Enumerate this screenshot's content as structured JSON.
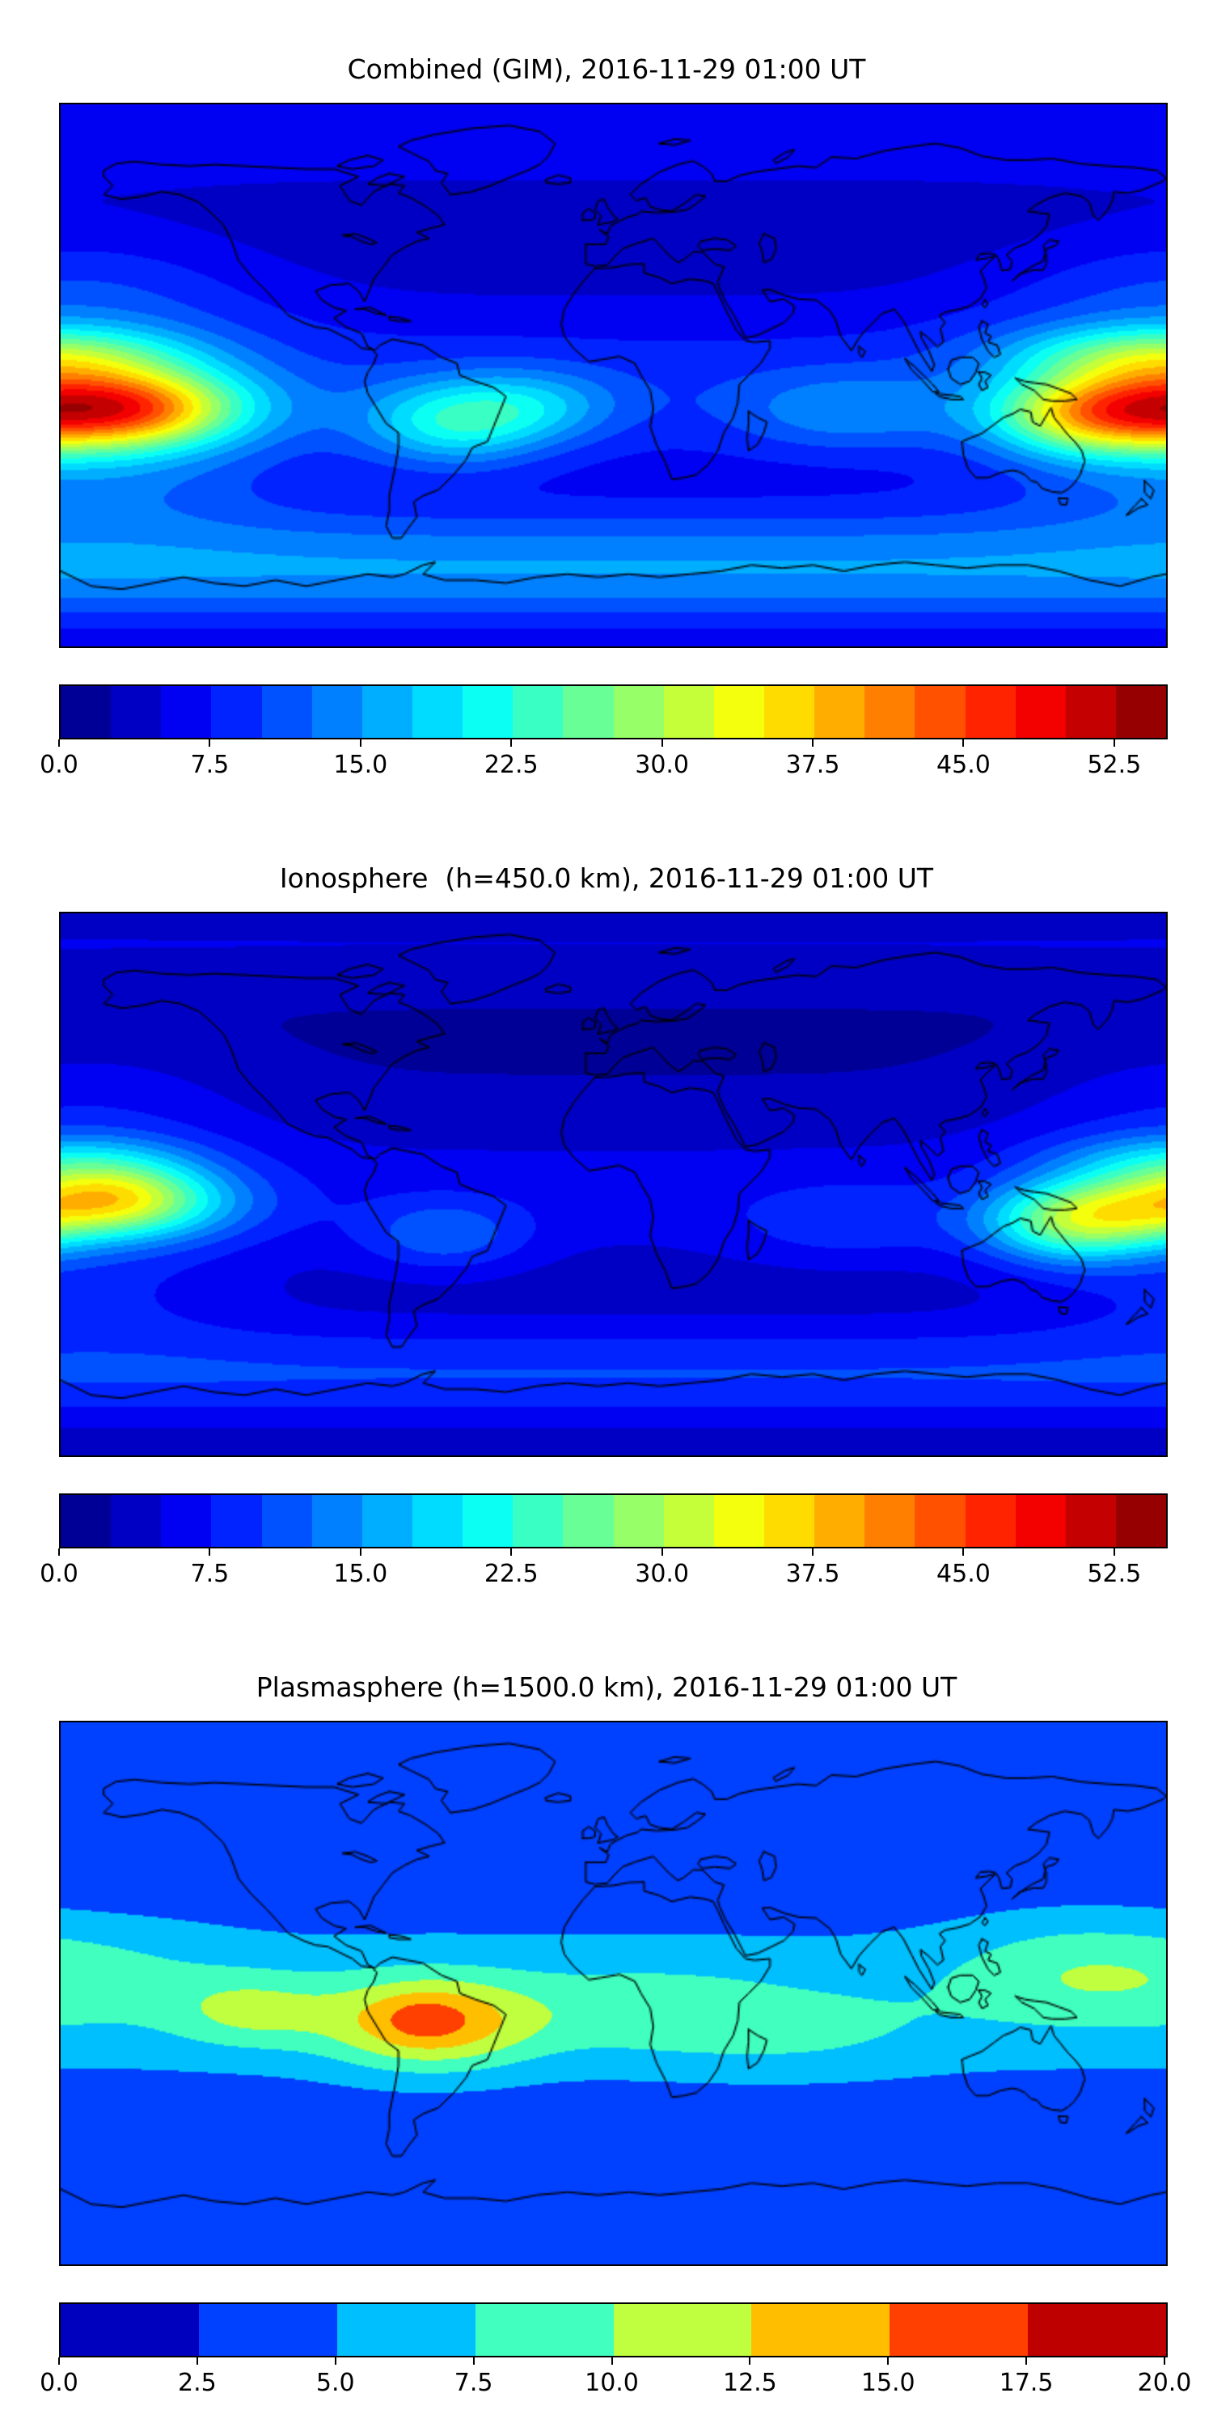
{
  "figure": {
    "background": "#ffffff",
    "frame_color": "#000000",
    "text_color": "#000000"
  },
  "chart_data": {
    "type": "heatmap",
    "subtype": "filled-contour-world-map",
    "projection": "equirectangular",
    "lon_range": [
      -180,
      180
    ],
    "lat_range": [
      -90,
      90
    ],
    "colormap": "jet",
    "grid": false,
    "panels": [
      {
        "id": "combined-gim",
        "title": "Combined (GIM), 2016-11-29 01:00 UT",
        "colorbar": {
          "orientation": "horizontal",
          "vmin": 0,
          "vmax": 55,
          "level_step": 2.5,
          "n_segments": 22,
          "tick_values": [
            0.0,
            7.5,
            15.0,
            22.5,
            30.0,
            37.5,
            45.0,
            52.5
          ],
          "tick_labels": [
            "0.0",
            "7.5",
            "15.0",
            "22.5",
            "30.0",
            "37.5",
            "45.0",
            "52.5"
          ]
        },
        "peak_value_approx": 47,
        "peak_location_approx": {
          "lon": -160,
          "lat": -11
        },
        "field": {
          "base": 3,
          "bands": [
            {
              "lat": -5,
              "width": 30,
              "amp": 6
            },
            {
              "lat": -64,
              "width": 20,
              "amp": 12
            },
            {
              "lat": 80,
              "width": 18,
              "amp": 4
            }
          ],
          "blobs": [
            {
              "lon": -172,
              "lat": -11,
              "slon": 48,
              "slat": 14,
              "amp": 36
            },
            {
              "lon": -152,
              "lat": -11,
              "slon": 26,
              "slat": 11,
              "amp": 5
            },
            {
              "lon": 153,
              "lat": -14,
              "slon": 30,
              "slat": 13,
              "amp": 12
            },
            {
              "lon": 175,
              "lat": 7,
              "slon": 45,
              "slat": 10,
              "amp": 14
            },
            {
              "lon": -52,
              "lat": -16,
              "slon": 30,
              "slat": 14,
              "amp": 13
            },
            {
              "lon": -25,
              "lat": -10,
              "slon": 28,
              "slat": 12,
              "amp": 7
            },
            {
              "lon": 75,
              "lat": -12,
              "slon": 35,
              "slat": 13,
              "amp": 6
            },
            {
              "lon": -175,
              "lat": 25,
              "slon": 60,
              "slat": 25,
              "amp": 6
            },
            {
              "lon": -170,
              "lat": -35,
              "slon": 60,
              "slat": 18,
              "amp": 6
            }
          ]
        }
      },
      {
        "id": "ionosphere-450km",
        "title": "Ionosphere  (h=450.0 km), 2016-11-29 01:00 UT",
        "colorbar": {
          "orientation": "horizontal",
          "vmin": 0,
          "vmax": 55,
          "level_step": 2.5,
          "n_segments": 22,
          "tick_values": [
            0.0,
            7.5,
            15.0,
            22.5,
            30.0,
            37.5,
            45.0,
            52.5
          ],
          "tick_labels": [
            "0.0",
            "7.5",
            "15.0",
            "22.5",
            "30.0",
            "37.5",
            "45.0",
            "52.5"
          ]
        },
        "peak_value_approx": 37,
        "peak_location_approx": {
          "lon": -165,
          "lat": -6
        },
        "field": {
          "base": 2,
          "bands": [
            {
              "lat": -4,
              "width": 28,
              "amp": 4
            },
            {
              "lat": -63,
              "width": 18,
              "amp": 8
            },
            {
              "lat": 80,
              "width": 16,
              "amp": 3
            }
          ],
          "blobs": [
            {
              "lon": -168,
              "lat": -6,
              "slon": 42,
              "slat": 13,
              "amp": 25
            },
            {
              "lon": -160,
              "lat": -3,
              "slon": 24,
              "slat": 10,
              "amp": 5
            },
            {
              "lon": 150,
              "lat": -13,
              "slon": 30,
              "slat": 13,
              "amp": 19
            },
            {
              "lon": -178,
              "lat": 9,
              "slon": 40,
              "slat": 9,
              "amp": 7
            },
            {
              "lon": -55,
              "lat": -17,
              "slon": 27,
              "slat": 12,
              "amp": 7
            },
            {
              "lon": 75,
              "lat": -13,
              "slon": 35,
              "slat": 13,
              "amp": 4
            },
            {
              "lon": -172,
              "lat": 25,
              "slon": 55,
              "slat": 24,
              "amp": 4
            },
            {
              "lon": -170,
              "lat": -35,
              "slon": 55,
              "slat": 18,
              "amp": 4
            }
          ]
        }
      },
      {
        "id": "plasmasphere-1500km",
        "title": "Plasmasphere (h=1500.0 km), 2016-11-29 01:00 UT",
        "colorbar": {
          "orientation": "horizontal",
          "vmin": 0,
          "vmax": 20,
          "level_step": 2.5,
          "n_segments": 8,
          "tick_values": [
            0.0,
            2.5,
            5.0,
            7.5,
            10.0,
            12.5,
            15.0,
            17.5,
            20.0
          ],
          "tick_labels": [
            "0.0",
            "2.5",
            "5.0",
            "7.5",
            "10.0",
            "12.5",
            "15.0",
            "17.5",
            "20.0"
          ]
        },
        "peak_value_approx": 16,
        "peak_location_approx": {
          "lon": -60,
          "lat": -9
        },
        "field": {
          "base": 2.8,
          "bands": [
            {
              "lat": -3,
              "width": 30,
              "amp": 3.6
            },
            {
              "lat": -62,
              "width": 15,
              "amp": 1.2
            }
          ],
          "blobs": [
            {
              "lon": -60,
              "lat": -10,
              "slon": 33,
              "slat": 15,
              "amp": 9
            },
            {
              "lon": -62,
              "lat": -8,
              "slon": 12,
              "slat": 7,
              "amp": 1.5
            },
            {
              "lon": -118,
              "lat": -6,
              "slon": 26,
              "slat": 12,
              "amp": 4.2
            },
            {
              "lon": 10,
              "lat": -6,
              "slon": 45,
              "slat": 16,
              "amp": 2.5
            },
            {
              "lon": 60,
              "lat": -14,
              "slon": 45,
              "slat": 14,
              "amp": 2.0
            },
            {
              "lon": 155,
              "lat": 2,
              "slon": 45,
              "slat": 15,
              "amp": 2.2
            },
            {
              "lon": 150,
              "lat": 14,
              "slon": 40,
              "slat": 16,
              "amp": 2.2
            },
            {
              "lon": -160,
              "lat": 8,
              "slon": 40,
              "slat": 18,
              "amp": 1.5
            }
          ]
        }
      }
    ]
  }
}
